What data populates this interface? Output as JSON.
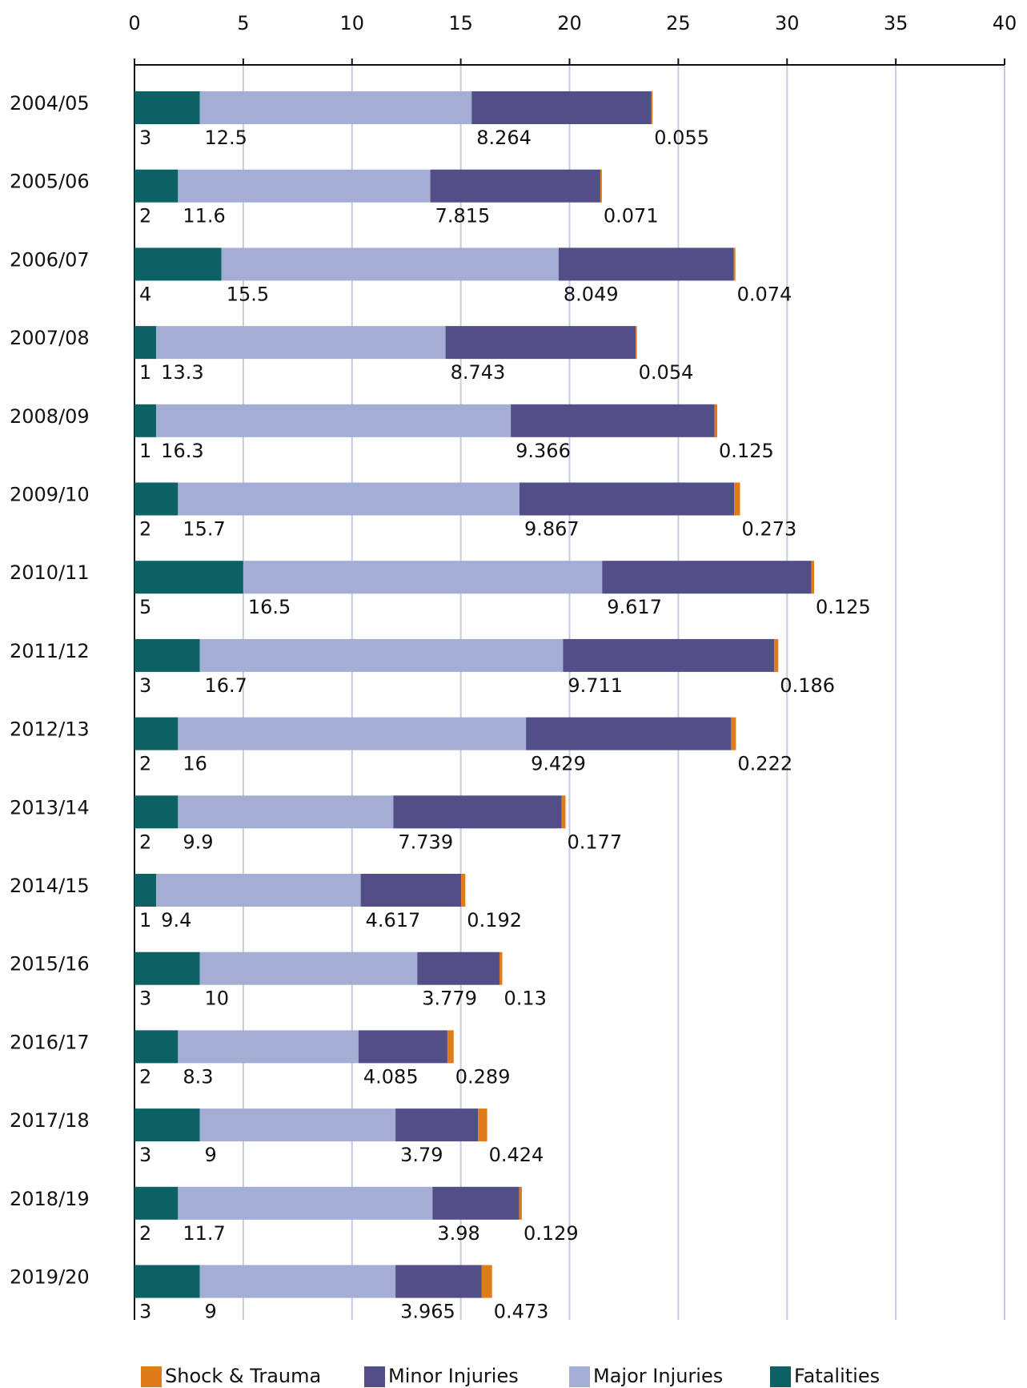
{
  "chart_data": {
    "type": "stacked-bar-horizontal",
    "categories": [
      "2004/05",
      "2005/06",
      "2006/07",
      "2007/08",
      "2008/09",
      "2009/10",
      "2010/11",
      "2011/12",
      "2012/13",
      "2013/14",
      "2014/15",
      "2015/16",
      "2016/17",
      "2017/18",
      "2018/19",
      "2019/20"
    ],
    "series": [
      {
        "name": "Fatalities",
        "color": "#0b6163",
        "values": [
          3,
          2,
          4,
          1,
          1,
          2,
          5,
          3,
          2,
          2,
          1,
          3,
          2,
          3,
          2,
          3
        ]
      },
      {
        "name": "Major Injuries",
        "color": "#a4aed4",
        "values": [
          12.5,
          11.6,
          15.5,
          13.3,
          16.3,
          15.7,
          16.5,
          16.7,
          16,
          9.9,
          9.4,
          10,
          8.3,
          9,
          11.7,
          9
        ]
      },
      {
        "name": "Minor Injuries",
        "color": "#524e87",
        "values": [
          8.264,
          7.815,
          8.049,
          8.743,
          9.366,
          9.867,
          9.617,
          9.711,
          9.429,
          7.739,
          4.617,
          3.779,
          4.085,
          3.79,
          3.98,
          3.965
        ]
      },
      {
        "name": "Shock & Trauma",
        "color": "#e07b1a",
        "values": [
          0.055,
          0.071,
          0.074,
          0.054,
          0.125,
          0.273,
          0.125,
          0.186,
          0.222,
          0.177,
          0.192,
          0.13,
          0.289,
          0.424,
          0.129,
          0.473
        ]
      }
    ],
    "xlim": [
      0,
      40
    ],
    "xticks": [
      0,
      5,
      10,
      15,
      20,
      25,
      30,
      35,
      40
    ],
    "grid": true
  }
}
